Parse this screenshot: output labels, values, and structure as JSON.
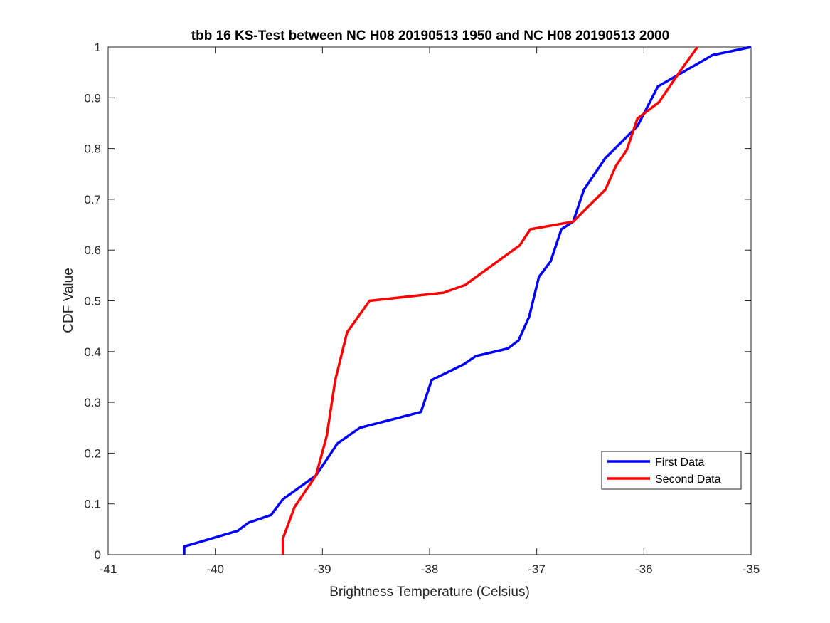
{
  "chart_data": {
    "type": "line",
    "title": "tbb 16 KS-Test between NC H08 20190513 1950 and NC H08 20190513 2000",
    "xlabel": "Brightness Temperature (Celsius)",
    "ylabel": "CDF Value",
    "xlim": [
      -41,
      -35
    ],
    "ylim": [
      0,
      1
    ],
    "xticks": [
      -41,
      -40,
      -39,
      -38,
      -37,
      -36,
      -35
    ],
    "yticks": [
      0,
      0.1,
      0.2,
      0.3,
      0.4,
      0.5,
      0.6,
      0.7,
      0.8,
      0.9,
      1
    ],
    "grid": false,
    "legend_position": "bottom-right",
    "series": [
      {
        "name": "First Data",
        "color": "#0000ff",
        "points": [
          [
            -40.29,
            0.0
          ],
          [
            -40.29,
            0.016
          ],
          [
            -39.79,
            0.047
          ],
          [
            -39.69,
            0.063
          ],
          [
            -39.48,
            0.078
          ],
          [
            -39.37,
            0.109
          ],
          [
            -39.06,
            0.156
          ],
          [
            -38.86,
            0.219
          ],
          [
            -38.65,
            0.25
          ],
          [
            -38.08,
            0.281
          ],
          [
            -37.98,
            0.344
          ],
          [
            -37.68,
            0.375
          ],
          [
            -37.57,
            0.391
          ],
          [
            -37.27,
            0.406
          ],
          [
            -37.17,
            0.422
          ],
          [
            -37.07,
            0.469
          ],
          [
            -36.98,
            0.547
          ],
          [
            -36.87,
            0.578
          ],
          [
            -36.77,
            0.641
          ],
          [
            -36.66,
            0.656
          ],
          [
            -36.56,
            0.719
          ],
          [
            -36.36,
            0.781
          ],
          [
            -36.06,
            0.844
          ],
          [
            -35.87,
            0.922
          ],
          [
            -35.36,
            0.984
          ],
          [
            -35.0,
            1.0
          ]
        ]
      },
      {
        "name": "Second Data",
        "color": "#ff0000",
        "points": [
          [
            -39.37,
            0.0
          ],
          [
            -39.37,
            0.031
          ],
          [
            -39.26,
            0.094
          ],
          [
            -39.06,
            0.156
          ],
          [
            -38.96,
            0.234
          ],
          [
            -38.88,
            0.344
          ],
          [
            -38.77,
            0.438
          ],
          [
            -38.56,
            0.5
          ],
          [
            -37.87,
            0.516
          ],
          [
            -37.67,
            0.531
          ],
          [
            -37.16,
            0.609
          ],
          [
            -37.06,
            0.641
          ],
          [
            -36.66,
            0.656
          ],
          [
            -36.36,
            0.719
          ],
          [
            -36.26,
            0.766
          ],
          [
            -36.16,
            0.797
          ],
          [
            -36.06,
            0.859
          ],
          [
            -35.86,
            0.891
          ],
          [
            -35.66,
            0.953
          ],
          [
            -35.5,
            1.0
          ]
        ]
      }
    ]
  }
}
